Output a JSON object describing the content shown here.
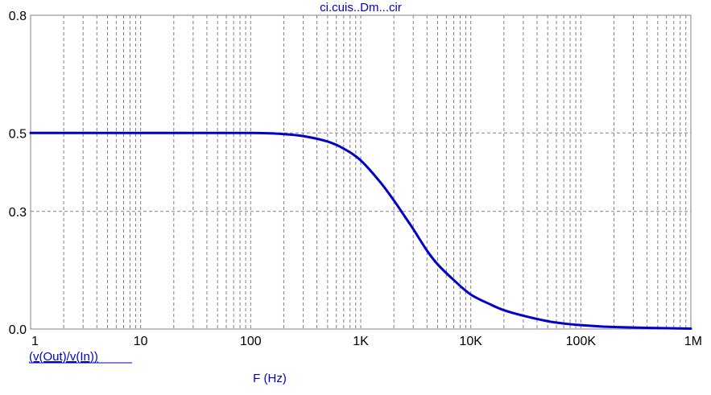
{
  "chart_data": {
    "type": "line",
    "title": "ci.cuis..Dm...cir",
    "xlabel": "F (Hz)",
    "ylabel": "",
    "x_scale": "log",
    "xlim": [
      1,
      1000000
    ],
    "ylim": [
      0,
      0.8
    ],
    "x_ticks": [
      {
        "value": 1,
        "label": "1"
      },
      {
        "value": 10,
        "label": "10"
      },
      {
        "value": 100,
        "label": "100"
      },
      {
        "value": 1000,
        "label": "1K"
      },
      {
        "value": 10000,
        "label": "10K"
      },
      {
        "value": 100000,
        "label": "100K"
      },
      {
        "value": 1000000,
        "label": "1M"
      }
    ],
    "y_ticks": [
      {
        "value": 0,
        "label": "0.0"
      },
      {
        "value": 0.3,
        "label": "0.3"
      },
      {
        "value": 0.5,
        "label": "0.5"
      },
      {
        "value": 0.8,
        "label": "0.8"
      }
    ],
    "grid": true,
    "series": [
      {
        "name": "(v(Out)/v(In))",
        "color": "#0000cc",
        "x": [
          1,
          10,
          100,
          200,
          300,
          500,
          700,
          1000,
          1500,
          2000,
          2500,
          3000,
          4000,
          5000,
          7000,
          10000,
          15000,
          20000,
          30000,
          50000,
          70000,
          100000,
          200000,
          1000000
        ],
        "y": [
          0.5,
          0.5,
          0.5,
          0.497,
          0.492,
          0.478,
          0.46,
          0.43,
          0.375,
          0.328,
          0.288,
          0.255,
          0.2,
          0.165,
          0.125,
          0.088,
          0.063,
          0.048,
          0.034,
          0.02,
          0.014,
          0.01,
          0.005,
          0.001
        ]
      }
    ],
    "colors": {
      "trace": "#0000cc",
      "label": "#0000cc",
      "grid": "#808080",
      "axis": "#808080"
    }
  }
}
